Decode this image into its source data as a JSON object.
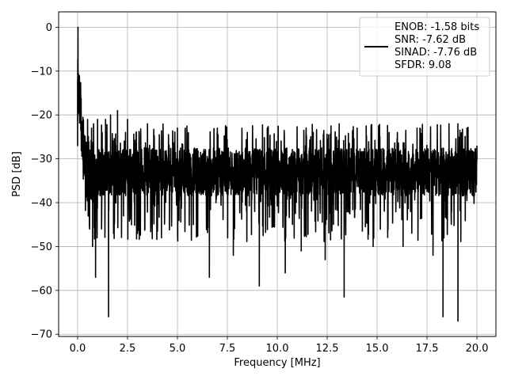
{
  "chart_data": {
    "type": "line",
    "xlabel": "Frequency [MHz]",
    "ylabel": "PSD [dB]",
    "xlim": [
      -0.95,
      20.95
    ],
    "ylim": [
      -70.5,
      3.5
    ],
    "xticks": [
      0.0,
      2.5,
      5.0,
      7.5,
      10.0,
      12.5,
      15.0,
      17.5,
      20.0
    ],
    "xtick_labels": [
      "0.0",
      "2.5",
      "5.0",
      "7.5",
      "10.0",
      "12.5",
      "15.0",
      "17.5",
      "20.0"
    ],
    "yticks": [
      0,
      -10,
      -20,
      -30,
      -40,
      -50,
      -60,
      -70
    ],
    "ytick_labels": [
      "0",
      "−10",
      "−20",
      "−30",
      "−40",
      "−50",
      "−60",
      "−70"
    ],
    "grid": true,
    "legend_position": "top-right",
    "series": [
      {
        "name": "ENOB: -1.58 bits\nSNR: -7.62 dB\nSINAD: -7.76 dB\nSFDR: 9.08",
        "color": "#000000",
        "description_points": [
          [
            0.0,
            -27.0
          ],
          [
            0.02,
            0.0
          ],
          [
            0.05,
            -12.0
          ],
          [
            0.1,
            -18.0
          ],
          [
            0.15,
            -16.0
          ],
          [
            0.2,
            -22.0
          ],
          [
            0.3,
            -25.0
          ],
          [
            0.45,
            -37.0
          ],
          [
            0.5,
            -21.0
          ],
          [
            0.6,
            -46.0
          ],
          [
            0.7,
            -23.0
          ],
          [
            0.75,
            -50.0
          ],
          [
            0.8,
            -22.0
          ],
          [
            0.9,
            -57.0
          ],
          [
            1.0,
            -21.0
          ],
          [
            1.2,
            -46.0
          ],
          [
            1.4,
            -21.0
          ],
          [
            1.55,
            -66.0
          ],
          [
            1.65,
            -20.0
          ],
          [
            1.8,
            -47.0
          ],
          [
            2.0,
            -19.0
          ],
          [
            2.3,
            -43.0
          ],
          [
            2.5,
            -21.0
          ],
          [
            3.0,
            -47.0
          ],
          [
            3.5,
            -22.0
          ],
          [
            4.2,
            -48.0
          ],
          [
            5.0,
            -23.0
          ],
          [
            5.8,
            -45.0
          ],
          [
            6.6,
            -57.0
          ],
          [
            7.0,
            -23.0
          ],
          [
            7.8,
            -52.0
          ],
          [
            8.5,
            -24.0
          ],
          [
            9.1,
            -59.0
          ],
          [
            9.5,
            -23.0
          ],
          [
            10.4,
            -56.0
          ],
          [
            11.2,
            -51.0
          ],
          [
            11.8,
            -24.0
          ],
          [
            12.4,
            -53.0
          ],
          [
            13.1,
            -22.0
          ],
          [
            13.35,
            -61.5
          ],
          [
            14.0,
            -23.0
          ],
          [
            14.8,
            -50.0
          ],
          [
            15.6,
            -24.0
          ],
          [
            16.3,
            -50.0
          ],
          [
            17.0,
            -23.0
          ],
          [
            17.8,
            -52.0
          ],
          [
            18.3,
            -66.0
          ],
          [
            18.6,
            -22.0
          ],
          [
            19.05,
            -67.0
          ],
          [
            19.5,
            -23.0
          ],
          [
            20.0,
            -27.0
          ]
        ]
      }
    ]
  }
}
